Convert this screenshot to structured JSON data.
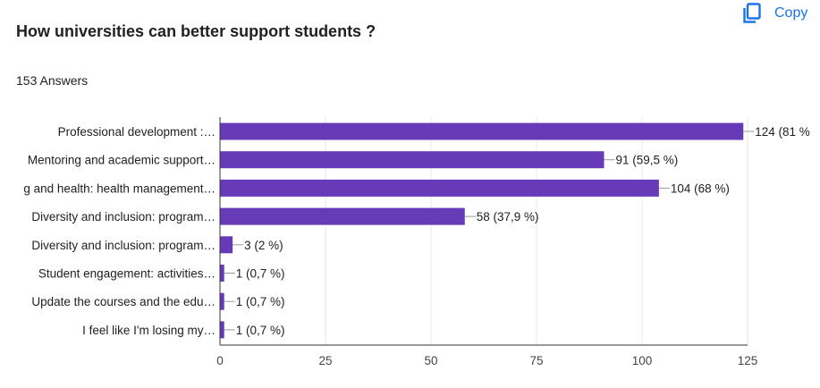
{
  "header": {
    "title": "How universities can better support students ?",
    "answers": "153 Answers",
    "copy_label": "Copy",
    "copy_icon": "copy-icon"
  },
  "colors": {
    "bar": "#673ab7",
    "axis": "#333333",
    "grid": "#e8e8e8",
    "accent": "#1a73e8"
  },
  "chart_data": {
    "type": "bar",
    "orientation": "horizontal",
    "title": "How universities can better support students ?",
    "xlabel": "",
    "ylabel": "",
    "xlim": [
      0,
      125
    ],
    "ticks": [
      0,
      25,
      50,
      75,
      100,
      125
    ],
    "tick_labels": [
      "0",
      "25",
      "50",
      "75",
      "100",
      "125"
    ],
    "grid": true,
    "categories": [
      "Professional development :…",
      "Mentoring and academic support…",
      "ɡ and health: health management…",
      "Diversity and inclusion: program…",
      "Diversity and inclusion: program…",
      "Student engagement: activities…",
      "Update the courses and the edu…",
      "I feel like I'm losing my…"
    ],
    "values": [
      124,
      91,
      104,
      58,
      3,
      1,
      1,
      1
    ],
    "value_labels": [
      "124 (81 %",
      "91 (59,5 %)",
      "104 (68 %)",
      "58 (37,9 %)",
      "3 (2 %)",
      "1 (0,7 %)",
      "1 (0,7 %)",
      "1 (0,7 %)"
    ]
  }
}
